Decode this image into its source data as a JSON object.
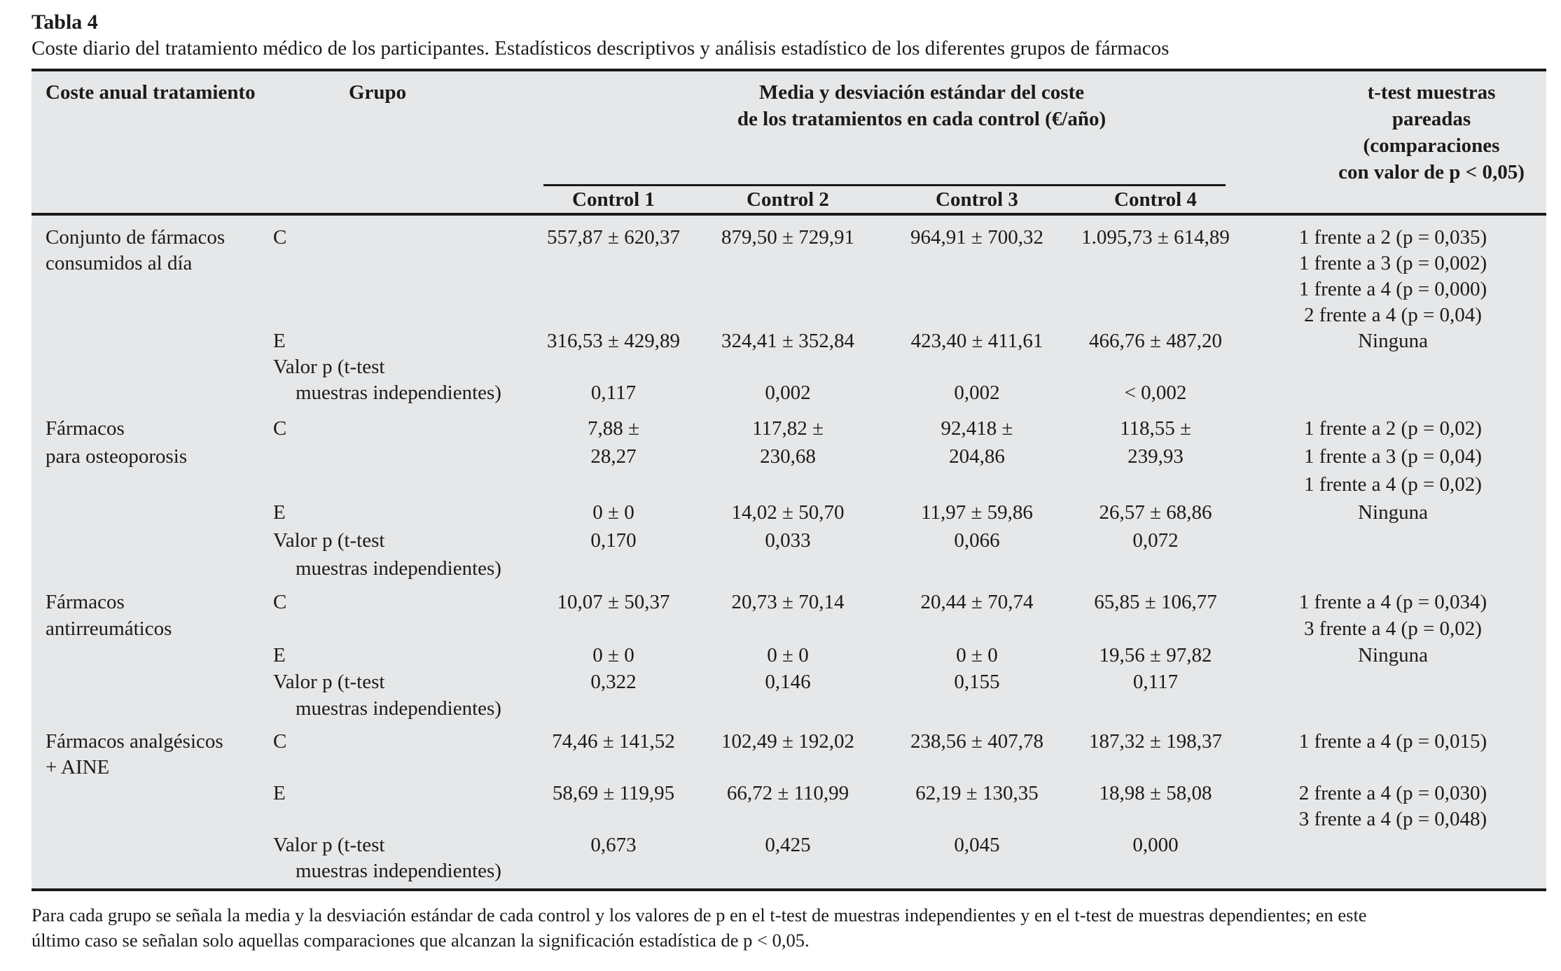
{
  "page": {
    "title": "Tabla 4",
    "caption": "Coste diario del tratamiento médico de los participantes. Estadísticos descriptivos y análisis estadístico de los diferentes grupos de fármacos",
    "footnote_lines": [
      "Para cada grupo se señala la media y la desviación estándar de cada control y los valores de p en el t-test de muestras independientes y en el t-test de muestras dependientes; en este",
      "último caso se señalan solo aquellas comparaciones que alcanzan la significación estadística de p < 0,05."
    ]
  },
  "colors": {
    "table_background": "#e6e7e8",
    "rule": "#1a1a1a",
    "text": "#1b1b1b"
  },
  "table": {
    "header": {
      "col1": "Coste anual tratamiento",
      "col2": "Grupo",
      "span_title_line1": "Media y desviación estándar del coste",
      "span_title_line2": "de los tratamientos en cada control (€/año)",
      "controls": [
        "Control 1",
        "Control 2",
        "Control 3",
        "Control 4"
      ],
      "ttest_header_lines": [
        "t-test muestras",
        "pareadas",
        "(comparaciones",
        "con valor de p < 0,05)"
      ]
    },
    "sections": [
      {
        "drug_group": "Conjunto de fármacos consumidos al día",
        "lines": [
          [
            "Conjunto de fármacos",
            "C",
            "557,87 ± 620,37",
            "879,50 ± 729,91",
            "964,91 ± 700,32",
            "1.095,73 ± 614,89",
            "1 frente a 2 (p = 0,035)"
          ],
          [
            "consumidos al día",
            "",
            "",
            "",
            "",
            "",
            "1 frente a 3 (p = 0,002)"
          ],
          [
            "",
            "",
            "",
            "",
            "",
            "",
            "1 frente a 4 (p = 0,000)"
          ],
          [
            "",
            "",
            "",
            "",
            "",
            "",
            "2 frente a 4 (p = 0,04)"
          ],
          [
            "",
            "E",
            "316,53 ± 429,89",
            "324,41 ± 352,84",
            "423,40 ± 411,61",
            "466,76 ± 487,20",
            "Ninguna"
          ],
          [
            "",
            "Valor p (t-test",
            "",
            "",
            "",
            "",
            ""
          ],
          [
            "",
            "muestras independientes)",
            "0,117",
            "0,002",
            "0,002",
            "< 0,002",
            ""
          ]
        ]
      },
      {
        "drug_group": "Fármacos para osteoporosis",
        "lines": [
          [
            "Fármacos",
            "C",
            "7,88 ±",
            "117,82 ±",
            "92,418 ±",
            "118,55 ±",
            "1 frente a 2 (p = 0,02)"
          ],
          [
            "para osteoporosis",
            "",
            "28,27",
            "230,68",
            "204,86",
            "239,93",
            "1 frente a 3 (p = 0,04)"
          ],
          [
            "",
            "",
            "",
            "",
            "",
            "",
            "1 frente a 4 (p = 0,02)"
          ],
          [
            "",
            "E",
            "0 ± 0",
            "14,02 ± 50,70",
            "11,97 ± 59,86",
            "26,57 ± 68,86",
            "Ninguna"
          ],
          [
            "",
            "Valor p (t-test",
            "0,170",
            "0,033",
            "0,066",
            "0,072",
            ""
          ],
          [
            "",
            "muestras independientes)",
            "",
            "",
            "",
            "",
            ""
          ]
        ]
      },
      {
        "drug_group": "Fármacos antirreumáticos",
        "lines": [
          [
            "Fármacos",
            "C",
            "10,07 ± 50,37",
            "20,73 ± 70,14",
            "20,44 ± 70,74",
            "65,85 ± 106,77",
            "1 frente a 4 (p = 0,034)"
          ],
          [
            "antirreumáticos",
            "",
            "",
            "",
            "",
            "",
            "3 frente a 4 (p = 0,02)"
          ],
          [
            "",
            "E",
            "0 ± 0",
            "0 ± 0",
            "0 ± 0",
            "19,56 ± 97,82",
            "Ninguna"
          ],
          [
            "",
            "Valor p (t-test",
            "0,322",
            "0,146",
            "0,155",
            "0,117",
            ""
          ],
          [
            "",
            "muestras independientes)",
            "",
            "",
            "",
            "",
            ""
          ]
        ]
      },
      {
        "drug_group": "Fármacos analgésicos + AINE",
        "lines": [
          [
            "Fármacos analgésicos",
            "C",
            "74,46 ± 141,52",
            "102,49 ± 192,02",
            "238,56 ± 407,78",
            "187,32 ± 198,37",
            "1 frente a 4 (p = 0,015)"
          ],
          [
            "+ AINE",
            "",
            "",
            "",
            "",
            "",
            ""
          ],
          [
            "",
            "E",
            "58,69 ± 119,95",
            "66,72 ± 110,99",
            "62,19 ± 130,35",
            "18,98 ± 58,08",
            "2 frente a 4 (p = 0,030)"
          ],
          [
            "",
            "",
            "",
            "",
            "",
            "",
            "3 frente a 4 (p = 0,048)"
          ],
          [
            "",
            "Valor p (t-test",
            "0,673",
            "0,425",
            "0,045",
            "0,000",
            ""
          ],
          [
            "",
            "muestras independientes)",
            "",
            "",
            "",
            "",
            ""
          ]
        ]
      }
    ]
  }
}
